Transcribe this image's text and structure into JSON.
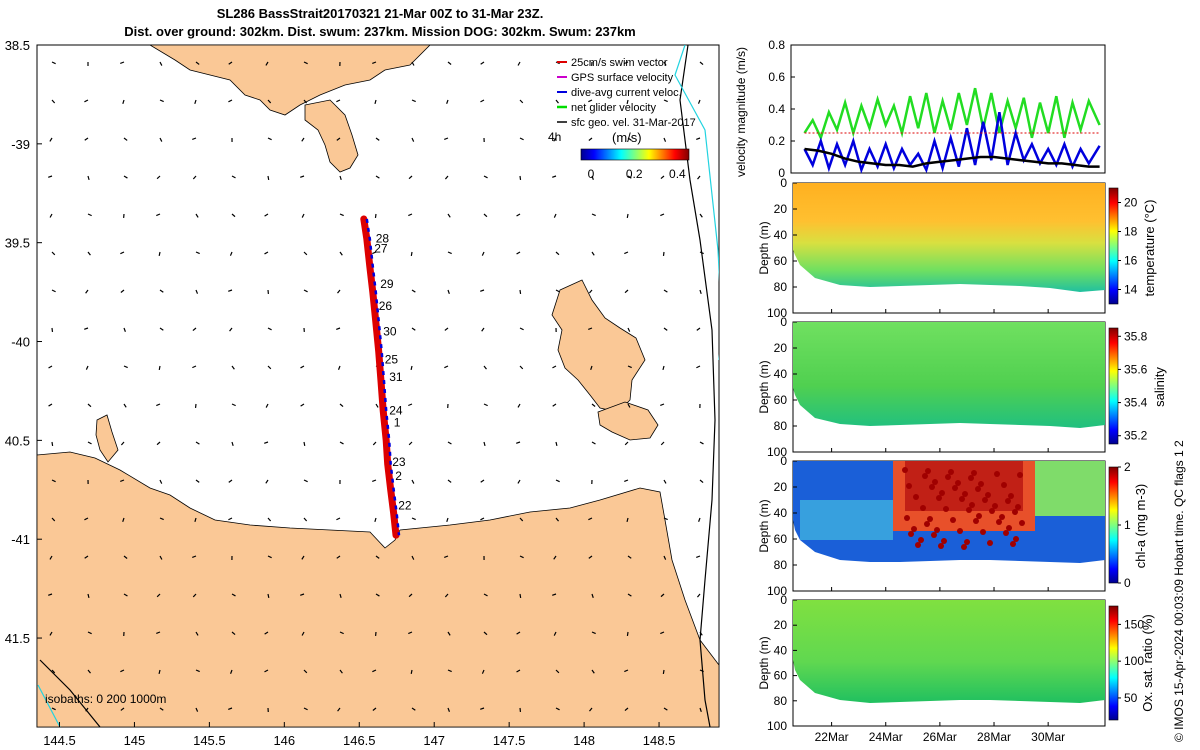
{
  "header": {
    "title_line1": "SL286 BassStrait20170321 21-Mar 00Z to 31-Mar 23Z.",
    "title_line2": "Dist. over ground: 302km. Dist. swum: 237km. Mission DOG: 302km. Swum: 237km"
  },
  "side_note": "© IMOS 15-Apr-2024 00:03:09 Hobart time. QC flags 1  2",
  "chart_data": [
    {
      "type": "scatter",
      "name": "glider-track-map",
      "xlim": [
        144.35,
        148.9
      ],
      "ylim": [
        -41.95,
        -38.5
      ],
      "xticks": [
        144.5,
        145,
        145.5,
        146,
        146.5,
        147,
        147.5,
        148,
        148.5
      ],
      "yticks": [
        -38.5,
        -39,
        -39.5,
        -40,
        -40.5,
        -41,
        -41.5
      ],
      "ytick_labels": [
        "38.5",
        "-39",
        "39.5",
        "-40",
        "40.5",
        "-41",
        "41.5"
      ],
      "legend": {
        "placement": "top-right",
        "entries": [
          {
            "label": "25cm/s swim vector",
            "color": "#dd0000"
          },
          {
            "label": "GPS surface velocity",
            "color": "#cc00cc"
          },
          {
            "label": "dive-avg current veloc.",
            "color": "#0000dd"
          },
          {
            "label": "net glider velocity",
            "color": "#00dd00"
          },
          {
            "label": "sfc geo. vel. 31-Mar-2017",
            "color": "#000000"
          }
        ],
        "extra_label": "4h"
      },
      "colorbar": {
        "label": "(m/s)",
        "ticks": [
          0,
          0.2,
          0.4
        ],
        "tick_labels": [
          "0",
          "0.2",
          "0.4"
        ],
        "range": [
          0,
          0.5
        ]
      },
      "isobaths_note": "isobaths: 0   200  1000m",
      "track": [
        [
          146.53,
          -39.38
        ],
        [
          146.55,
          -39.48
        ],
        [
          146.57,
          -39.62
        ],
        [
          146.59,
          -39.75
        ],
        [
          146.61,
          -39.9
        ],
        [
          146.63,
          -40.05
        ],
        [
          146.645,
          -40.2
        ],
        [
          146.66,
          -40.35
        ],
        [
          146.68,
          -40.5
        ],
        [
          146.69,
          -40.62
        ],
        [
          146.71,
          -40.75
        ],
        [
          146.73,
          -40.87
        ],
        [
          146.745,
          -40.98
        ]
      ],
      "day_labels": [
        {
          "text": "28",
          "lon": 146.57,
          "lat": -39.48
        },
        {
          "text": "27",
          "lon": 146.56,
          "lat": -39.53
        },
        {
          "text": "29",
          "lon": 146.6,
          "lat": -39.71
        },
        {
          "text": "26",
          "lon": 146.59,
          "lat": -39.82
        },
        {
          "text": "30",
          "lon": 146.62,
          "lat": -39.95
        },
        {
          "text": "25",
          "lon": 146.63,
          "lat": -40.09
        },
        {
          "text": "31",
          "lon": 146.66,
          "lat": -40.18
        },
        {
          "text": "24",
          "lon": 146.66,
          "lat": -40.35
        },
        {
          "text": "1",
          "lon": 146.69,
          "lat": -40.41
        },
        {
          "text": "23",
          "lon": 146.68,
          "lat": -40.61
        },
        {
          "text": "2",
          "lon": 146.7,
          "lat": -40.68
        },
        {
          "text": "22",
          "lon": 146.72,
          "lat": -40.83
        }
      ]
    },
    {
      "type": "line",
      "name": "velocity-magnitude",
      "ylabel": "velocity magnitude (m/s)",
      "ylim": [
        0,
        0.8
      ],
      "yticks": [
        0,
        0.2,
        0.4,
        0.6,
        0.8
      ],
      "xlim": [
        20.5,
        32.1
      ],
      "series": [
        {
          "color": "#22dd22",
          "x": [
            21,
            21.3,
            21.6,
            21.9,
            22.2,
            22.5,
            22.8,
            23.1,
            23.4,
            23.7,
            24,
            24.3,
            24.6,
            24.9,
            25.2,
            25.5,
            25.8,
            26.1,
            26.4,
            26.7,
            27,
            27.3,
            27.6,
            27.9,
            28.2,
            28.5,
            28.8,
            29.1,
            29.4,
            29.7,
            30,
            30.3,
            30.6,
            30.9,
            31.2,
            31.5,
            31.9
          ],
          "y": [
            0.25,
            0.33,
            0.22,
            0.38,
            0.27,
            0.44,
            0.25,
            0.42,
            0.28,
            0.46,
            0.3,
            0.42,
            0.25,
            0.48,
            0.28,
            0.5,
            0.25,
            0.45,
            0.27,
            0.5,
            0.3,
            0.53,
            0.28,
            0.5,
            0.25,
            0.45,
            0.28,
            0.47,
            0.22,
            0.44,
            0.25,
            0.48,
            0.22,
            0.44,
            0.27,
            0.45,
            0.3
          ]
        },
        {
          "color": "#0000dd",
          "x": [
            21,
            21.3,
            21.6,
            21.9,
            22.2,
            22.5,
            22.8,
            23.1,
            23.4,
            23.7,
            24,
            24.3,
            24.6,
            24.9,
            25.2,
            25.5,
            25.8,
            26.1,
            26.4,
            26.7,
            27,
            27.3,
            27.6,
            27.9,
            28.2,
            28.5,
            28.8,
            29.1,
            29.4,
            29.7,
            30,
            30.3,
            30.6,
            30.9,
            31.2,
            31.5,
            31.9
          ],
          "y": [
            0.15,
            0.05,
            0.2,
            0.03,
            0.18,
            0.05,
            0.2,
            0.02,
            0.15,
            0.04,
            0.18,
            0.03,
            0.15,
            0.05,
            0.12,
            0.02,
            0.2,
            0.03,
            0.22,
            0.04,
            0.28,
            0.05,
            0.32,
            0.08,
            0.38,
            0.05,
            0.25,
            0.08,
            0.18,
            0.06,
            0.15,
            0.05,
            0.18,
            0.04,
            0.15,
            0.06,
            0.17
          ]
        },
        {
          "color": "#000000",
          "x": [
            21,
            21.5,
            22,
            22.5,
            23,
            23.5,
            24,
            24.5,
            25,
            25.5,
            26,
            26.5,
            27,
            27.5,
            28,
            28.5,
            29,
            29.5,
            30,
            30.5,
            31,
            31.5,
            31.9
          ],
          "y": [
            0.15,
            0.14,
            0.12,
            0.09,
            0.07,
            0.06,
            0.05,
            0.05,
            0.04,
            0.06,
            0.07,
            0.08,
            0.09,
            0.1,
            0.1,
            0.09,
            0.08,
            0.07,
            0.06,
            0.06,
            0.05,
            0.04,
            0.04
          ]
        },
        {
          "color": "#dd0000",
          "x": [
            21,
            22,
            23,
            24,
            25,
            26,
            27,
            28,
            29,
            30,
            31,
            31.9
          ],
          "y": [
            0.25,
            0.25,
            0.25,
            0.25,
            0.25,
            0.25,
            0.25,
            0.25,
            0.25,
            0.25,
            0.25,
            0.25
          ]
        }
      ]
    },
    {
      "type": "heatmap",
      "name": "temperature-section",
      "ylabel": "Depth (m)",
      "ylim": [
        0,
        100
      ],
      "yticks": [
        0,
        20,
        40,
        60,
        80,
        100
      ],
      "colorbar": {
        "label": "temperature (°C)",
        "ticks": [
          14,
          16,
          18,
          20
        ],
        "range": [
          13,
          21
        ]
      }
    },
    {
      "type": "heatmap",
      "name": "salinity-section",
      "ylabel": "Depth (m)",
      "ylim": [
        0,
        100
      ],
      "yticks": [
        0,
        20,
        40,
        60,
        80,
        100
      ],
      "colorbar": {
        "label": "salinity",
        "ticks": [
          35.2,
          35.4,
          35.6,
          35.8
        ],
        "range": [
          35.15,
          35.85
        ]
      }
    },
    {
      "type": "heatmap",
      "name": "chla-section",
      "ylabel": "Depth (m)",
      "ylim": [
        0,
        100
      ],
      "yticks": [
        0,
        20,
        40,
        60,
        80,
        100
      ],
      "colorbar": {
        "label": "chl-a (mg m-3)",
        "ticks": [
          0,
          1,
          2
        ],
        "range": [
          0,
          2
        ]
      }
    },
    {
      "type": "heatmap",
      "name": "oxygen-section",
      "ylabel": "Depth (m)",
      "ylim": [
        0,
        100
      ],
      "yticks": [
        0,
        20,
        40,
        60,
        80,
        100
      ],
      "xticks": [
        22,
        24,
        26,
        28,
        30
      ],
      "xtick_labels": [
        "22Mar",
        "24Mar",
        "26Mar",
        "28Mar",
        "30Mar"
      ],
      "colorbar": {
        "label": "Ox. sat. ratio (%)",
        "ticks": [
          50,
          100,
          150
        ],
        "range": [
          20,
          175
        ]
      }
    }
  ]
}
